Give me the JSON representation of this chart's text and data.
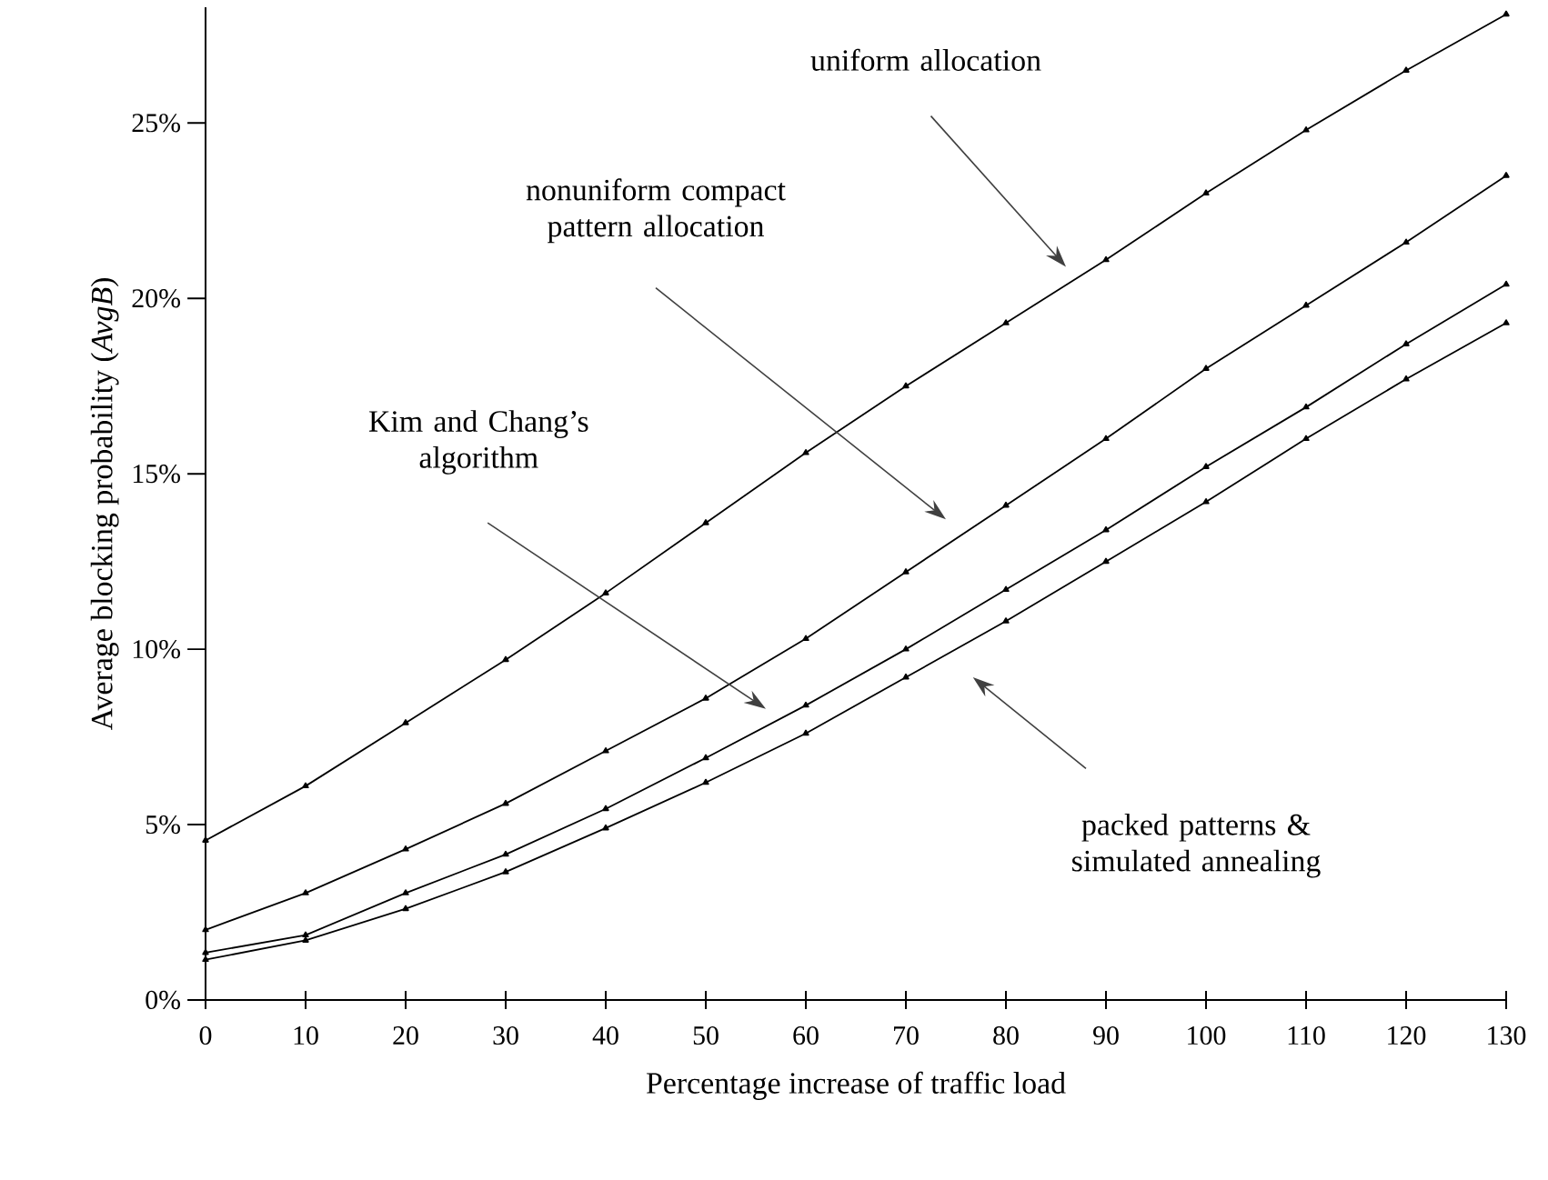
{
  "chart_data": {
    "type": "line",
    "xlabel": "Percentage increase of traffic load",
    "ylabel": "Average blocking probability (*AvgB*)",
    "x": [
      0,
      10,
      20,
      30,
      40,
      50,
      60,
      70,
      80,
      90,
      100,
      110,
      120,
      130
    ],
    "xlim": [
      0,
      130
    ],
    "xticks": [
      0,
      10,
      20,
      30,
      40,
      50,
      60,
      70,
      80,
      90,
      100,
      110,
      120,
      130
    ],
    "ylim": [
      0,
      28.3
    ],
    "yticks": [
      {
        "value": 0,
        "label": "0%"
      },
      {
        "value": 5,
        "label": "5%"
      },
      {
        "value": 10,
        "label": "10%"
      },
      {
        "value": 15,
        "label": "15%"
      },
      {
        "value": 20,
        "label": "20%"
      },
      {
        "value": 25,
        "label": "25%"
      }
    ],
    "marker": "triangle",
    "line_style": "solid",
    "series": [
      {
        "color": "#000000",
        "values": [
          4.55,
          6.1,
          7.9,
          9.7,
          11.6,
          13.6,
          15.6,
          17.5,
          19.3,
          21.1,
          23.0,
          24.8,
          26.5,
          28.1
        ]
      },
      {
        "color": "#000000",
        "values": [
          2.0,
          3.05,
          4.3,
          5.6,
          7.1,
          8.6,
          10.3,
          12.2,
          14.1,
          16.0,
          18.0,
          19.8,
          21.6,
          23.5
        ]
      },
      {
        "color": "#000000",
        "values": [
          1.35,
          1.85,
          3.05,
          4.15,
          5.45,
          6.9,
          8.4,
          10.0,
          11.7,
          13.4,
          15.2,
          16.9,
          18.7,
          20.4
        ]
      },
      {
        "color": "#000000",
        "values": [
          1.15,
          1.7,
          2.6,
          3.65,
          4.9,
          6.2,
          7.6,
          9.2,
          10.8,
          12.5,
          14.2,
          16.0,
          17.7,
          19.3
        ]
      }
    ],
    "annotations": [
      "uniform allocation",
      "nonuniform compact pattern allocation",
      "Kim and Chang’s algorithm",
      "packed patterns & simulated annealing"
    ]
  }
}
